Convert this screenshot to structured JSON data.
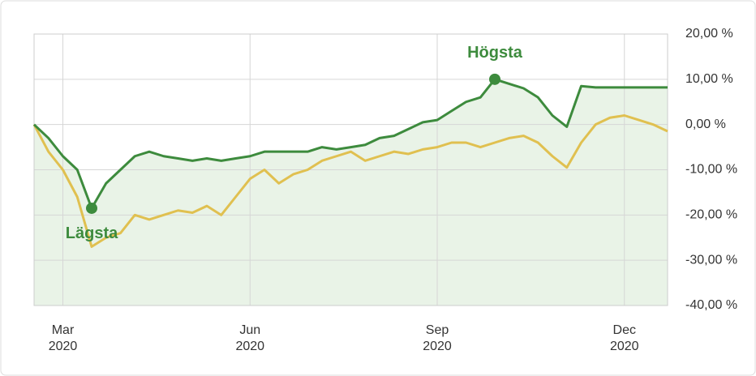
{
  "chart_data": {
    "type": "line",
    "categories": [
      null,
      null,
      "Mar\n2020",
      null,
      null,
      null,
      null,
      null,
      null,
      null,
      null,
      null,
      null,
      null,
      null,
      "Jun\n2020",
      null,
      null,
      null,
      null,
      null,
      null,
      null,
      null,
      null,
      null,
      null,
      null,
      "Sep\n2020",
      null,
      null,
      null,
      null,
      null,
      null,
      null,
      null,
      null,
      null,
      null,
      null,
      "Dec\n2020",
      null,
      null,
      null
    ],
    "series": [
      {
        "color": "#3d8b3d",
        "values": [
          0,
          -3,
          -7,
          -10,
          -18.5,
          -13,
          -10,
          -7,
          -6,
          -7,
          -7.5,
          -8,
          -7.5,
          -8,
          -7.5,
          -7,
          -6,
          -6,
          -6,
          -6,
          -5,
          -5.5,
          -5,
          -4.5,
          -3,
          -2.5,
          -1,
          0.5,
          1,
          3,
          5,
          6,
          10,
          9,
          8,
          6,
          2,
          -0.5,
          8.5,
          8.2,
          8.2,
          8.2,
          8.2,
          8.2,
          8.2
        ]
      },
      {
        "color": "#e0c050",
        "values": [
          0,
          -6,
          -10,
          -16,
          -27,
          -25,
          -24,
          -20,
          -21,
          -20,
          -19,
          -19.5,
          -18,
          -20,
          -16,
          -12,
          -10,
          -13,
          -11,
          -10,
          -8,
          -7,
          -6,
          -8,
          -7,
          -6,
          -6.5,
          -5.5,
          -5,
          -4,
          -4,
          -5,
          -4,
          -3,
          -2.5,
          -4,
          -7,
          -9.5,
          -4,
          0,
          1.5,
          2,
          1,
          0,
          -1.5
        ]
      }
    ],
    "area_color": "#e9f3e7",
    "annotations": {
      "max": "Högsta",
      "min": "Lägsta"
    },
    "ylim": [
      -40,
      20
    ],
    "yticks": [
      {
        "value": 20,
        "label": "20,00 %"
      },
      {
        "value": 10,
        "label": "10,00 %"
      },
      {
        "value": 0,
        "label": "0,00 %"
      },
      {
        "value": -10,
        "label": "-10,00 %"
      },
      {
        "value": -20,
        "label": "-20,00 %"
      },
      {
        "value": -30,
        "label": "-30,00 %"
      },
      {
        "value": -40,
        "label": "-40,00 %"
      }
    ],
    "grid": true
  }
}
